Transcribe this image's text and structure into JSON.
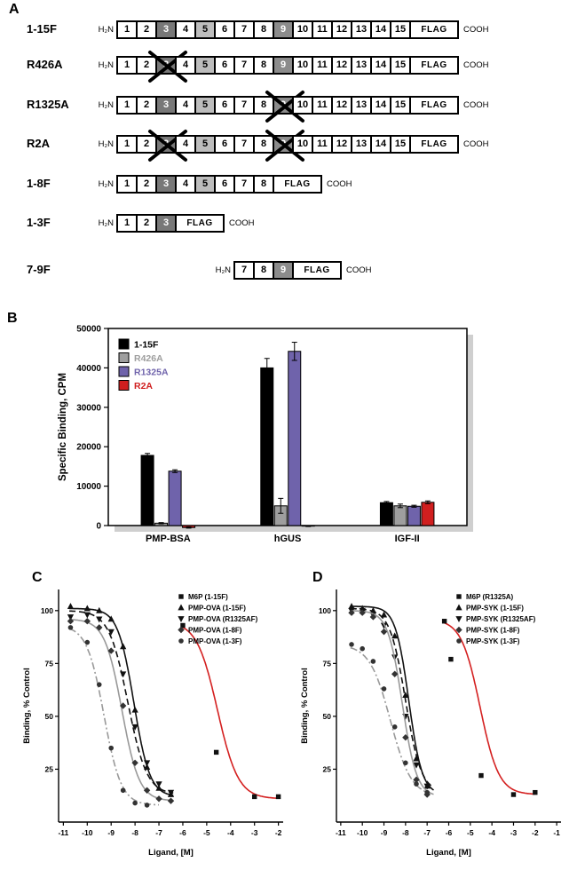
{
  "figure": {
    "panel_a": {
      "label": "A",
      "n_terminus": "H₂N",
      "c_terminus": "COOH",
      "flag_label": "FLAG",
      "domain_shading": {
        "3": {
          "bg": "#787878",
          "fg": "#ffffff"
        },
        "5": {
          "bg": "#bdbdbd",
          "fg": "#000000"
        },
        "9": {
          "bg": "#8c8c8c",
          "fg": "#ffffff"
        }
      },
      "constructs": [
        {
          "name": "1-15F",
          "start": 1,
          "end": 15,
          "crossed": []
        },
        {
          "name": "R426A",
          "start": 1,
          "end": 15,
          "crossed": [
            3
          ]
        },
        {
          "name": "R1325A",
          "start": 1,
          "end": 15,
          "crossed": [
            9
          ]
        },
        {
          "name": "R2A",
          "start": 1,
          "end": 15,
          "crossed": [
            3,
            9
          ]
        },
        {
          "name": "1-8F",
          "start": 1,
          "end": 8,
          "crossed": []
        },
        {
          "name": "1-3F",
          "start": 1,
          "end": 3,
          "crossed": []
        },
        {
          "name": "7-9F",
          "start": 7,
          "end": 9,
          "crossed": []
        }
      ]
    },
    "panel_b": {
      "label": "B"
    },
    "panel_c": {
      "label": "C"
    },
    "panel_d": {
      "label": "D"
    }
  },
  "chart_data": [
    {
      "panel": "B",
      "type": "bar",
      "title": "",
      "xlabel": "",
      "ylabel": "Specific Binding, CPM",
      "ylim": [
        0,
        50000
      ],
      "yticks": [
        0,
        10000,
        20000,
        30000,
        40000,
        50000
      ],
      "categories": [
        "PMP-BSA",
        "hGUS",
        "IGF-II"
      ],
      "legend_position": "top-left",
      "series": [
        {
          "name": "1-15F",
          "color": "#000000",
          "values": [
            17800,
            40000,
            5800
          ],
          "errors": [
            500,
            2400,
            300
          ]
        },
        {
          "name": "R426A",
          "color": "#9e9e9e",
          "values": [
            600,
            5000,
            5000
          ],
          "errors": [
            150,
            1900,
            450
          ]
        },
        {
          "name": "R1325A",
          "color": "#6f63ab",
          "values": [
            13800,
            44200,
            4900
          ],
          "errors": [
            350,
            2300,
            250
          ]
        },
        {
          "name": "R2A",
          "color": "#d01f1f",
          "values": [
            -500,
            -150,
            5900
          ],
          "errors": [
            150,
            100,
            350
          ]
        }
      ]
    },
    {
      "panel": "C",
      "type": "line",
      "title": "",
      "xlabel": "Ligand, [M]",
      "ylabel": "Binding, % Control",
      "xlim": [
        -11.2,
        -1.8
      ],
      "ylim": [
        0,
        110
      ],
      "xticks": [
        -11,
        -10,
        -9,
        -8,
        -7,
        -6,
        -5,
        -4,
        -3,
        -2
      ],
      "yticks": [
        25,
        50,
        75,
        100
      ],
      "legend_position": "top-right",
      "series": [
        {
          "name": "M6P (1-15F)",
          "curve_color": "#d42020",
          "marker_color": "#111111",
          "marker": "square",
          "dash": "solid",
          "fit": {
            "top": 95,
            "bottom": 11,
            "logIC50": -4.55,
            "hill": 1.0
          },
          "curve_range": [
            -6.05,
            -2.0
          ],
          "points": [
            [
              -6,
              93
            ],
            [
              -4.6,
              33
            ],
            [
              -3,
              12
            ],
            [
              -2,
              12
            ]
          ]
        },
        {
          "name": "PMP-OVA (1-15F)",
          "curve_color": "#111111",
          "marker_color": "#111111",
          "marker": "triangle",
          "dash": "solid",
          "fit": {
            "top": 101,
            "bottom": 12,
            "logIC50": -8.05,
            "hill": 1.3
          },
          "curve_range": [
            -10.75,
            -6.4
          ],
          "points": [
            [
              -10.7,
              102
            ],
            [
              -10,
              101
            ],
            [
              -9.5,
              100
            ],
            [
              -9,
              96
            ],
            [
              -8.5,
              83
            ],
            [
              -8,
              53
            ],
            [
              -7.5,
              26
            ],
            [
              -7,
              16
            ],
            [
              -6.5,
              13
            ]
          ]
        },
        {
          "name": "PMP-OVA (R1325AF)",
          "curve_color": "#111111",
          "marker_color": "#111111",
          "marker": "triangle-down",
          "dash": "dashed",
          "fit": {
            "top": 100,
            "bottom": 13,
            "logIC50": -8.3,
            "hill": 1.1
          },
          "curve_range": [
            -10.75,
            -6.4
          ],
          "points": [
            [
              -10.7,
              97
            ],
            [
              -10,
              98
            ],
            [
              -9.5,
              96
            ],
            [
              -9,
              90
            ],
            [
              -8.5,
              70
            ],
            [
              -8,
              45
            ],
            [
              -7.5,
              28
            ],
            [
              -7,
              18
            ],
            [
              -6.5,
              14
            ]
          ]
        },
        {
          "name": "PMP-OVA (1-8F)",
          "curve_color": "#999999",
          "marker_color": "#333333",
          "marker": "diamond",
          "dash": "solid",
          "fit": {
            "top": 96,
            "bottom": 10,
            "logIC50": -8.55,
            "hill": 1.2
          },
          "curve_range": [
            -10.75,
            -6.4
          ],
          "points": [
            [
              -10.7,
              95
            ],
            [
              -10,
              95
            ],
            [
              -9.5,
              92
            ],
            [
              -9,
              81
            ],
            [
              -8.5,
              55
            ],
            [
              -8,
              28
            ],
            [
              -7.5,
              15
            ],
            [
              -7,
              11
            ],
            [
              -6.5,
              10
            ]
          ]
        },
        {
          "name": "PMP-OVA (1-3F)",
          "curve_color": "#999999",
          "marker_color": "#333333",
          "marker": "circle",
          "dash": "dashdot",
          "fit": {
            "top": 93,
            "bottom": 8,
            "logIC50": -9.3,
            "hill": 1.2
          },
          "curve_range": [
            -10.75,
            -7.0
          ],
          "points": [
            [
              -10.7,
              92
            ],
            [
              -10,
              85
            ],
            [
              -9.5,
              65
            ],
            [
              -9,
              35
            ],
            [
              -8.5,
              15
            ],
            [
              -8,
              9
            ],
            [
              -7.5,
              8
            ]
          ]
        }
      ]
    },
    {
      "panel": "D",
      "type": "line",
      "title": "",
      "xlabel": "Ligand, [M]",
      "ylabel": "Binding, % Control",
      "xlim": [
        -11.2,
        -0.8
      ],
      "ylim": [
        0,
        110
      ],
      "xticks": [
        -11,
        -10,
        -9,
        -8,
        -7,
        -6,
        -5,
        -4,
        -3,
        -2,
        -1
      ],
      "yticks": [
        25,
        50,
        75,
        100
      ],
      "legend_position": "top-right",
      "series": [
        {
          "name": "M6P (R1325A)",
          "curve_color": "#d42020",
          "marker_color": "#111111",
          "marker": "square",
          "dash": "solid",
          "fit": {
            "top": 96,
            "bottom": 13,
            "logIC50": -4.55,
            "hill": 1.0
          },
          "curve_range": [
            -6.2,
            -2.0
          ],
          "points": [
            [
              -6.2,
              95
            ],
            [
              -5.9,
              77
            ],
            [
              -4.5,
              22
            ],
            [
              -3,
              13
            ],
            [
              -2,
              14
            ]
          ]
        },
        {
          "name": "PMP-SYK (1-15F)",
          "curve_color": "#111111",
          "marker_color": "#111111",
          "marker": "triangle",
          "dash": "solid",
          "fit": {
            "top": 102,
            "bottom": 13,
            "logIC50": -7.85,
            "hill": 1.4
          },
          "curve_range": [
            -10.55,
            -6.7
          ],
          "points": [
            [
              -10.5,
              102
            ],
            [
              -10,
              101
            ],
            [
              -9.5,
              100
            ],
            [
              -9,
              98
            ],
            [
              -8.5,
              88
            ],
            [
              -8,
              60
            ],
            [
              -7.5,
              30
            ],
            [
              -7,
              17
            ]
          ]
        },
        {
          "name": "PMP-SYK (R1325AF)",
          "curve_color": "#111111",
          "marker_color": "#111111",
          "marker": "triangle-down",
          "dash": "dashed",
          "fit": {
            "top": 101,
            "bottom": 14,
            "logIC50": -8.0,
            "hill": 1.2
          },
          "curve_range": [
            -10.55,
            -6.7
          ],
          "points": [
            [
              -10.5,
              100
            ],
            [
              -10,
              100
            ],
            [
              -9.5,
              98
            ],
            [
              -9,
              93
            ],
            [
              -8.5,
              78
            ],
            [
              -8,
              50
            ],
            [
              -7.5,
              27
            ],
            [
              -7,
              17
            ]
          ]
        },
        {
          "name": "PMP-SYK (1-8F)",
          "curve_color": "#999999",
          "marker_color": "#333333",
          "marker": "diamond",
          "dash": "solid",
          "fit": {
            "top": 100,
            "bottom": 12,
            "logIC50": -8.15,
            "hill": 1.3
          },
          "curve_range": [
            -10.55,
            -6.7
          ],
          "points": [
            [
              -10.5,
              99
            ],
            [
              -10,
              99
            ],
            [
              -9.5,
              97
            ],
            [
              -9,
              90
            ],
            [
              -8.5,
              70
            ],
            [
              -8,
              40
            ],
            [
              -7.5,
              20
            ],
            [
              -7,
              13
            ]
          ]
        },
        {
          "name": "PMP-SYK (1-3F)",
          "curve_color": "#999999",
          "marker_color": "#333333",
          "marker": "circle",
          "dash": "dashdot",
          "fit": {
            "top": 84,
            "bottom": 12,
            "logIC50": -8.7,
            "hill": 0.9
          },
          "curve_range": [
            -10.55,
            -6.9
          ],
          "points": [
            [
              -10.5,
              84
            ],
            [
              -10,
              82
            ],
            [
              -9.5,
              76
            ],
            [
              -9,
              63
            ],
            [
              -8.5,
              45
            ],
            [
              -8,
              28
            ],
            [
              -7.5,
              18
            ],
            [
              -7,
              14
            ]
          ]
        }
      ]
    }
  ]
}
